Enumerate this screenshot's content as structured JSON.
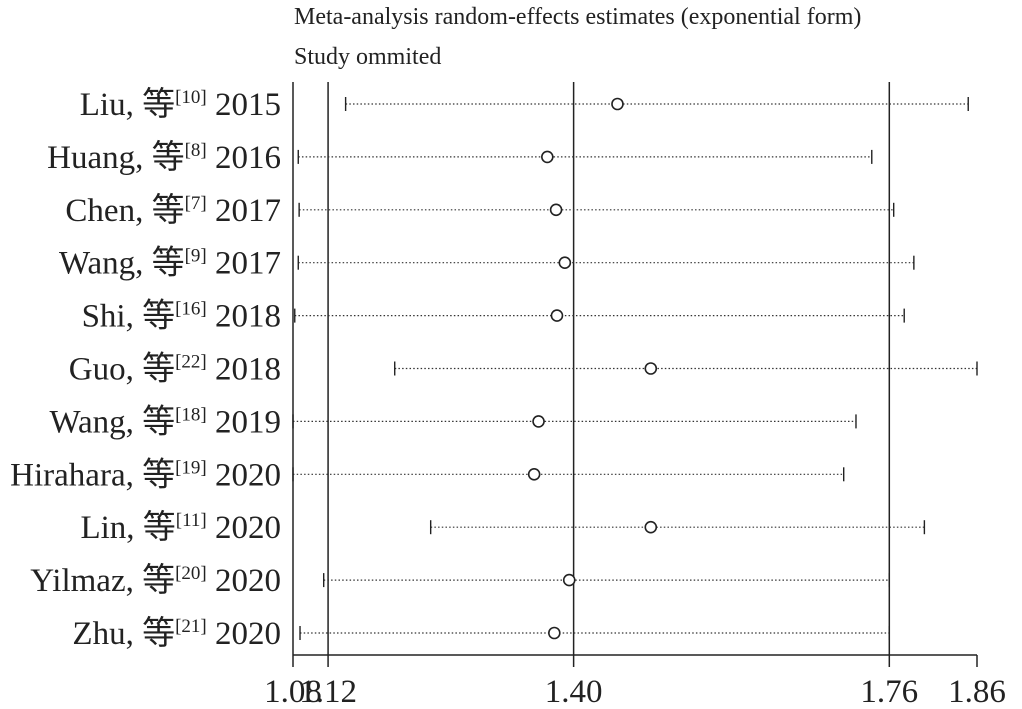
{
  "chart_data": {
    "type": "forest",
    "title": "Meta-analysis random-effects estimates (exponential form)",
    "subtitle": "Study ommited",
    "x_ticks": [
      1.08,
      1.12,
      1.4,
      1.76,
      1.86
    ],
    "x_tick_labels": [
      "1.08",
      "1.12",
      "1.40",
      "1.76",
      "1.86"
    ],
    "xlim": [
      1.08,
      1.86
    ],
    "reference_lines": [
      1.12,
      1.4,
      1.76
    ],
    "studies": [
      {
        "author": "Liu, 等",
        "ref": "[10]",
        "year": "2015",
        "estimate": 1.45,
        "lower": 1.14,
        "upper": 1.85
      },
      {
        "author": "Huang, 等",
        "ref": "[8]",
        "year": "2016",
        "estimate": 1.37,
        "lower": 1.086,
        "upper": 1.74
      },
      {
        "author": "Chen, 等",
        "ref": "[7]",
        "year": "2017",
        "estimate": 1.38,
        "lower": 1.087,
        "upper": 1.765
      },
      {
        "author": "Wang, 等",
        "ref": "[9]",
        "year": "2017",
        "estimate": 1.39,
        "lower": 1.086,
        "upper": 1.788
      },
      {
        "author": "Shi, 等",
        "ref": "[16]",
        "year": "2018",
        "estimate": 1.381,
        "lower": 1.082,
        "upper": 1.777
      },
      {
        "author": "Guo, 等",
        "ref": "[22]",
        "year": "2018",
        "estimate": 1.488,
        "lower": 1.196,
        "upper": 1.86
      },
      {
        "author": "Wang, 等",
        "ref": "[18]",
        "year": "2019",
        "estimate": 1.36,
        "lower": 1.08,
        "upper": 1.722
      },
      {
        "author": "Hirahara, 等",
        "ref": "[19]",
        "year": "2020",
        "estimate": 1.355,
        "lower": 1.08,
        "upper": 1.708
      },
      {
        "author": "Lin, 等",
        "ref": "[11]",
        "year": "2020",
        "estimate": 1.488,
        "lower": 1.237,
        "upper": 1.8
      },
      {
        "author": "Yilmaz, 等",
        "ref": "[20]",
        "year": "2020",
        "estimate": 1.395,
        "lower": 1.115,
        "upper": 1.76
      },
      {
        "author": "Zhu, 等",
        "ref": "[21]",
        "year": "2020",
        "estimate": 1.378,
        "lower": 1.088,
        "upper": 1.76
      }
    ]
  }
}
